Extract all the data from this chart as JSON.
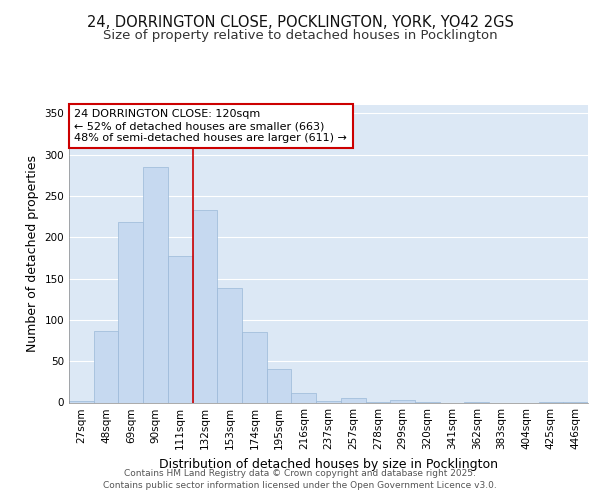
{
  "title_line1": "24, DORRINGTON CLOSE, POCKLINGTON, YORK, YO42 2GS",
  "title_line2": "Size of property relative to detached houses in Pocklington",
  "xlabel": "Distribution of detached houses by size in Pocklington",
  "ylabel": "Number of detached properties",
  "categories": [
    "27sqm",
    "48sqm",
    "69sqm",
    "90sqm",
    "111sqm",
    "132sqm",
    "153sqm",
    "174sqm",
    "195sqm",
    "216sqm",
    "237sqm",
    "257sqm",
    "278sqm",
    "299sqm",
    "320sqm",
    "341sqm",
    "362sqm",
    "383sqm",
    "404sqm",
    "425sqm",
    "446sqm"
  ],
  "values": [
    2,
    86,
    218,
    285,
    177,
    233,
    138,
    85,
    40,
    11,
    2,
    5,
    1,
    3,
    1,
    0,
    1,
    0,
    0,
    1,
    1
  ],
  "bar_color": "#c6d9f0",
  "bar_edge_color": "#9ab8d8",
  "plot_bg_color": "#dce8f5",
  "fig_bg_color": "#ffffff",
  "grid_color": "#ffffff",
  "property_label": "24 DORRINGTON CLOSE: 120sqm",
  "annotation_smaller": "← 52% of detached houses are smaller (663)",
  "annotation_larger": "48% of semi-detached houses are larger (611) →",
  "annotation_box_color": "#ffffff",
  "annotation_box_edge_color": "#cc0000",
  "vline_color": "#cc0000",
  "vline_x": 4.5,
  "ylim": [
    0,
    360
  ],
  "yticks": [
    0,
    50,
    100,
    150,
    200,
    250,
    300,
    350
  ],
  "footer1": "Contains HM Land Registry data © Crown copyright and database right 2025.",
  "footer2": "Contains public sector information licensed under the Open Government Licence v3.0.",
  "title_fontsize": 10.5,
  "subtitle_fontsize": 9.5,
  "ylabel_fontsize": 9,
  "xlabel_fontsize": 9,
  "tick_fontsize": 7.5,
  "annotation_fontsize": 8,
  "footer_fontsize": 6.5
}
